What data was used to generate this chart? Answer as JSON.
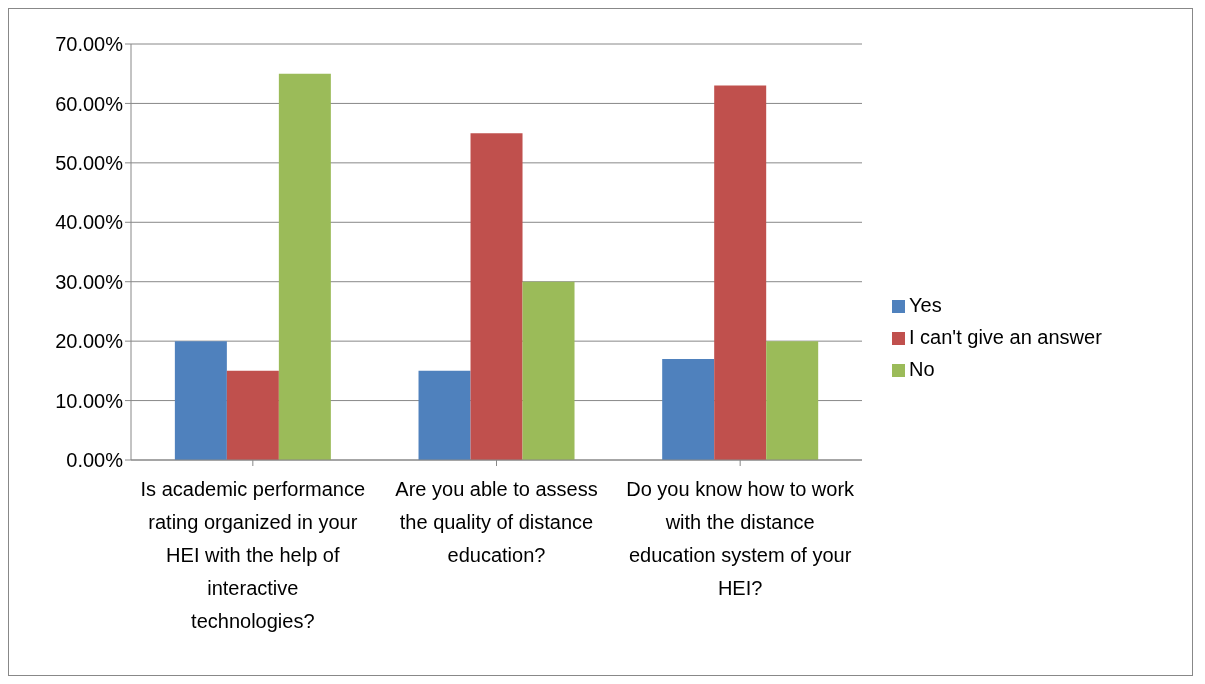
{
  "chart_data": {
    "type": "bar",
    "categories": [
      "Is academic performance rating organized in your HEI with the help of interactive technologies?",
      "Are you able to assess the quality of distance education?",
      "Do you know how to work with the distance education system of your HEI?"
    ],
    "series": [
      {
        "name": "Yes",
        "color": "#4f81bd",
        "values": [
          20,
          15,
          17
        ]
      },
      {
        "name": "I can't give an answer",
        "color": "#c0504d",
        "values": [
          15,
          55,
          63
        ]
      },
      {
        "name": "No",
        "color": "#9bbb59",
        "values": [
          65,
          30,
          20
        ]
      }
    ],
    "ylim": [
      0,
      70
    ],
    "yticks": [
      {
        "value": 0,
        "label": "0.00%"
      },
      {
        "value": 10,
        "label": "10.00%"
      },
      {
        "value": 20,
        "label": "20.00%"
      },
      {
        "value": 30,
        "label": "30.00%"
      },
      {
        "value": 40,
        "label": "40.00%"
      },
      {
        "value": 50,
        "label": "50.00%"
      },
      {
        "value": 60,
        "label": "60.00%"
      },
      {
        "value": 70,
        "label": "70.00%"
      }
    ],
    "grid": "y",
    "legend": "right"
  }
}
